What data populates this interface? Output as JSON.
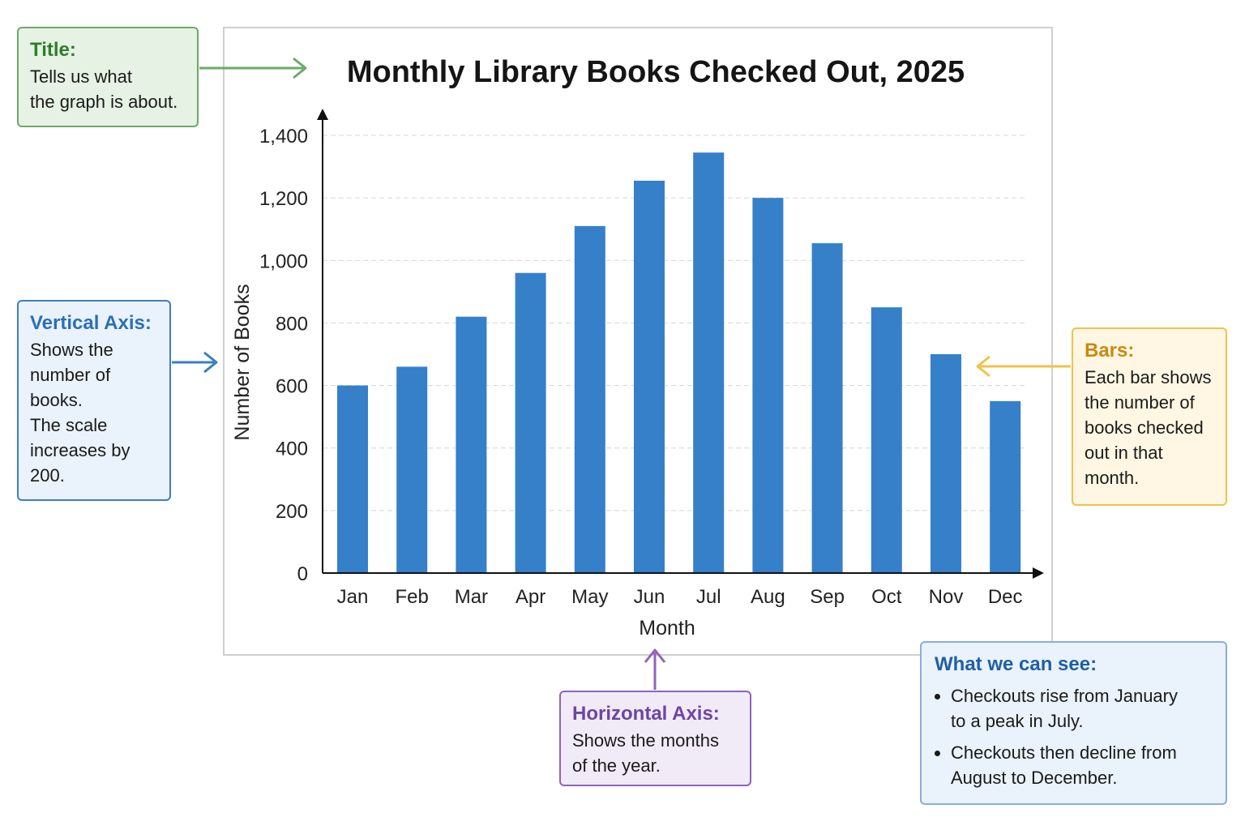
{
  "chart_data": {
    "type": "bar",
    "title": "Monthly Library Books Checked Out, 2025",
    "xlabel": "Month",
    "ylabel": "Number of Books",
    "categories": [
      "Jan",
      "Feb",
      "Mar",
      "Apr",
      "May",
      "Jun",
      "Jul",
      "Aug",
      "Sep",
      "Oct",
      "Nov",
      "Dec"
    ],
    "values": [
      600,
      660,
      820,
      960,
      1110,
      1255,
      1345,
      1200,
      1055,
      850,
      700,
      550
    ],
    "ylim": [
      0,
      1400
    ],
    "yticks": [
      0,
      200,
      400,
      600,
      800,
      1000,
      1200,
      1400
    ],
    "ytick_labels": [
      "0",
      "200",
      "400",
      "600",
      "800",
      "1,000",
      "1,200",
      "1,400"
    ],
    "grid": true,
    "bar_color": "#3580c8"
  },
  "callouts": {
    "title": {
      "head": "Title:",
      "lines": [
        "Tells us what",
        "the graph is about."
      ]
    },
    "vertical_axis": {
      "head": "Vertical Axis:",
      "lines": [
        "Shows the",
        "number of",
        "books.",
        "The scale",
        "increases by",
        "200."
      ]
    },
    "bars": {
      "head": "Bars:",
      "lines": [
        "Each bar shows",
        "the number of",
        "books checked",
        "out in that",
        "month."
      ]
    },
    "horizontal_axis": {
      "head": "Horizontal Axis:",
      "lines": [
        "Shows the months",
        "of the year."
      ]
    },
    "what_we_see": {
      "head": "What we can see:",
      "bullets": [
        [
          "Checkouts rise from January",
          "to a peak in July."
        ],
        [
          "Checkouts then decline from",
          "August to December."
        ]
      ]
    }
  },
  "colors": {
    "title_callout": "#6aaa68",
    "vertical_callout": "#3a7ec8",
    "bars_callout": "#f0c24a",
    "horizontal_callout": "#8e63bd"
  }
}
